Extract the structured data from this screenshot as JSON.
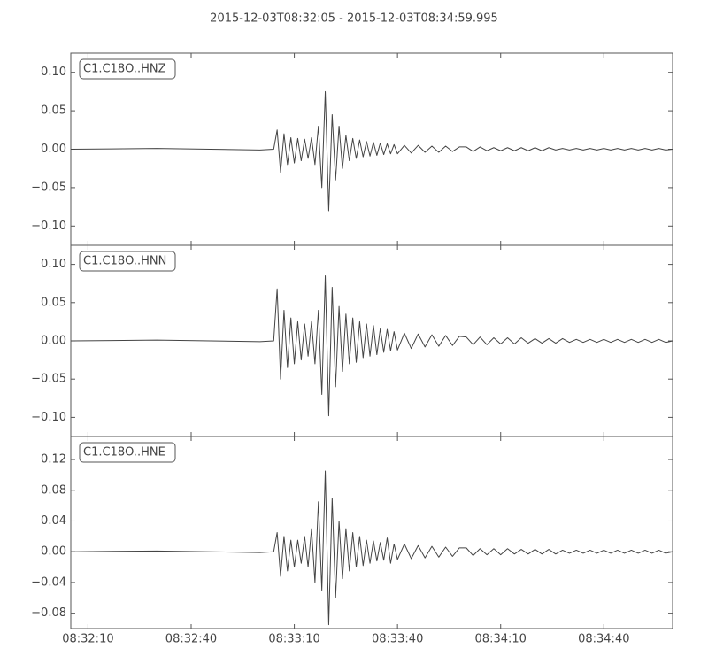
{
  "title": "2015-12-03T08:32:05  -  2015-12-03T08:34:59.995",
  "chart_data": [
    {
      "type": "line",
      "x": [
        "08:32:05",
        "08:32:30",
        "08:33:00",
        "08:33:04",
        "08:33:05",
        "08:33:06",
        "08:33:07",
        "08:33:08",
        "08:33:09",
        "08:33:10",
        "08:33:11",
        "08:33:12",
        "08:33:13",
        "08:33:14",
        "08:33:15",
        "08:33:16",
        "08:33:17",
        "08:33:18",
        "08:33:19",
        "08:33:20",
        "08:33:21",
        "08:33:22",
        "08:33:23",
        "08:33:24",
        "08:33:25",
        "08:33:26",
        "08:33:27",
        "08:33:28",
        "08:33:29",
        "08:33:30",
        "08:33:31",
        "08:33:32",
        "08:33:33",
        "08:33:34",
        "08:33:35",
        "08:33:36",
        "08:33:37",
        "08:33:38",
        "08:33:39",
        "08:33:40",
        "08:33:42",
        "08:33:44",
        "08:33:46",
        "08:33:48",
        "08:33:50",
        "08:33:52",
        "08:33:54",
        "08:33:56",
        "08:33:58",
        "08:34:00",
        "08:34:02",
        "08:34:04",
        "08:34:06",
        "08:34:08",
        "08:34:10",
        "08:34:12",
        "08:34:14",
        "08:34:16",
        "08:34:18",
        "08:34:20",
        "08:34:22",
        "08:34:24",
        "08:34:26",
        "08:34:28",
        "08:34:30",
        "08:34:32",
        "08:34:34",
        "08:34:36",
        "08:34:38",
        "08:34:40",
        "08:34:42",
        "08:34:44",
        "08:34:46",
        "08:34:48",
        "08:34:50",
        "08:34:52",
        "08:34:54",
        "08:34:56",
        "08:34:58",
        "08:34:59.995"
      ],
      "series": [
        {
          "name": "C1.C18O..HNZ",
          "color": "#444444",
          "values": [
            0,
            0.001,
            -0.001,
            0,
            0.025,
            -0.03,
            0.02,
            -0.02,
            0.015,
            -0.018,
            0.014,
            -0.015,
            0.013,
            -0.012,
            0.015,
            -0.02,
            0.03,
            -0.05,
            0.075,
            -0.08,
            0.045,
            -0.04,
            0.03,
            -0.025,
            0.018,
            -0.015,
            0.014,
            -0.012,
            0.012,
            -0.01,
            0.01,
            -0.009,
            0.009,
            -0.008,
            0.008,
            -0.007,
            0.007,
            -0.006,
            0.006,
            -0.006,
            0.005,
            -0.005,
            0.005,
            -0.004,
            0.004,
            -0.004,
            0.004,
            -0.003,
            0.003,
            0.003,
            -0.003,
            0.003,
            -0.002,
            0.002,
            -0.002,
            0.002,
            -0.002,
            0.002,
            -0.002,
            0.002,
            -0.002,
            0.002,
            -0.001,
            0.001,
            -0.001,
            0.001,
            -0.001,
            0.001,
            -0.001,
            0.001,
            -0.001,
            0.001,
            -0.001,
            0.001,
            -0.001,
            0.001,
            -0.001,
            0.001,
            -0.001,
            0
          ]
        }
      ],
      "xlim": [
        "08:32:05",
        "08:34:59.995"
      ],
      "ylim": [
        -0.125,
        0.125
      ],
      "yticks": [
        {
          "value": 0.1,
          "label": "0.10"
        },
        {
          "value": 0.05,
          "label": "0.05"
        },
        {
          "value": 0,
          "label": "0.00"
        },
        {
          "value": -0.05,
          "label": "−0.05"
        },
        {
          "value": -0.1,
          "label": "−0.10"
        }
      ]
    },
    {
      "type": "line",
      "x": [
        "08:32:05",
        "08:32:30",
        "08:33:00",
        "08:33:04",
        "08:33:05",
        "08:33:06",
        "08:33:07",
        "08:33:08",
        "08:33:09",
        "08:33:10",
        "08:33:11",
        "08:33:12",
        "08:33:13",
        "08:33:14",
        "08:33:15",
        "08:33:16",
        "08:33:17",
        "08:33:18",
        "08:33:19",
        "08:33:20",
        "08:33:21",
        "08:33:22",
        "08:33:23",
        "08:33:24",
        "08:33:25",
        "08:33:26",
        "08:33:27",
        "08:33:28",
        "08:33:29",
        "08:33:30",
        "08:33:31",
        "08:33:32",
        "08:33:33",
        "08:33:34",
        "08:33:35",
        "08:33:36",
        "08:33:37",
        "08:33:38",
        "08:33:39",
        "08:33:40",
        "08:33:42",
        "08:33:44",
        "08:33:46",
        "08:33:48",
        "08:33:50",
        "08:33:52",
        "08:33:54",
        "08:33:56",
        "08:33:58",
        "08:34:00",
        "08:34:02",
        "08:34:04",
        "08:34:06",
        "08:34:08",
        "08:34:10",
        "08:34:12",
        "08:34:14",
        "08:34:16",
        "08:34:18",
        "08:34:20",
        "08:34:22",
        "08:34:24",
        "08:34:26",
        "08:34:28",
        "08:34:30",
        "08:34:32",
        "08:34:34",
        "08:34:36",
        "08:34:38",
        "08:34:40",
        "08:34:42",
        "08:34:44",
        "08:34:46",
        "08:34:48",
        "08:34:50",
        "08:34:52",
        "08:34:54",
        "08:34:56",
        "08:34:58",
        "08:34:59.995"
      ],
      "series": [
        {
          "name": "C1.C18O..HNN",
          "color": "#444444",
          "values": [
            0,
            0.001,
            -0.001,
            0,
            0.068,
            -0.05,
            0.04,
            -0.035,
            0.03,
            -0.03,
            0.025,
            -0.025,
            0.022,
            -0.02,
            0.025,
            -0.03,
            0.04,
            -0.07,
            0.085,
            -0.098,
            0.07,
            -0.06,
            0.045,
            -0.04,
            0.035,
            -0.03,
            0.03,
            -0.028,
            0.025,
            -0.022,
            0.022,
            -0.02,
            0.02,
            -0.018,
            0.016,
            -0.015,
            0.015,
            -0.013,
            0.012,
            -0.012,
            0.01,
            -0.01,
            0.009,
            -0.008,
            0.008,
            -0.007,
            0.007,
            -0.006,
            0.006,
            0.005,
            -0.005,
            0.005,
            -0.005,
            0.004,
            -0.004,
            0.004,
            -0.004,
            0.004,
            -0.003,
            0.003,
            -0.003,
            0.003,
            -0.003,
            0.003,
            -0.002,
            0.002,
            -0.002,
            0.002,
            -0.002,
            0.002,
            -0.002,
            0.002,
            -0.002,
            0.002,
            -0.002,
            0.002,
            -0.002,
            0.002,
            -0.002,
            0
          ]
        }
      ],
      "xlim": [
        "08:32:05",
        "08:34:59.995"
      ],
      "ylim": [
        -0.125,
        0.125
      ],
      "yticks": [
        {
          "value": 0.1,
          "label": "0.10"
        },
        {
          "value": 0.05,
          "label": "0.05"
        },
        {
          "value": 0,
          "label": "0.00"
        },
        {
          "value": -0.05,
          "label": "−0.05"
        },
        {
          "value": -0.1,
          "label": "−0.10"
        }
      ]
    },
    {
      "type": "line",
      "x": [
        "08:32:05",
        "08:32:30",
        "08:33:00",
        "08:33:04",
        "08:33:05",
        "08:33:06",
        "08:33:07",
        "08:33:08",
        "08:33:09",
        "08:33:10",
        "08:33:11",
        "08:33:12",
        "08:33:13",
        "08:33:14",
        "08:33:15",
        "08:33:16",
        "08:33:17",
        "08:33:18",
        "08:33:19",
        "08:33:20",
        "08:33:21",
        "08:33:22",
        "08:33:23",
        "08:33:24",
        "08:33:25",
        "08:33:26",
        "08:33:27",
        "08:33:28",
        "08:33:29",
        "08:33:30",
        "08:33:31",
        "08:33:32",
        "08:33:33",
        "08:33:34",
        "08:33:35",
        "08:33:36",
        "08:33:37",
        "08:33:38",
        "08:33:39",
        "08:33:40",
        "08:33:42",
        "08:33:44",
        "08:33:46",
        "08:33:48",
        "08:33:50",
        "08:33:52",
        "08:33:54",
        "08:33:56",
        "08:33:58",
        "08:34:00",
        "08:34:02",
        "08:34:04",
        "08:34:06",
        "08:34:08",
        "08:34:10",
        "08:34:12",
        "08:34:14",
        "08:34:16",
        "08:34:18",
        "08:34:20",
        "08:34:22",
        "08:34:24",
        "08:34:26",
        "08:34:28",
        "08:34:30",
        "08:34:32",
        "08:34:34",
        "08:34:36",
        "08:34:38",
        "08:34:40",
        "08:34:42",
        "08:34:44",
        "08:34:46",
        "08:34:48",
        "08:34:50",
        "08:34:52",
        "08:34:54",
        "08:34:56",
        "08:34:58",
        "08:34:59.995"
      ],
      "series": [
        {
          "name": "C1.C18O..HNE",
          "color": "#444444",
          "values": [
            0,
            0.001,
            -0.001,
            0,
            0.025,
            -0.032,
            0.02,
            -0.025,
            0.015,
            -0.02,
            0.015,
            -0.015,
            0.02,
            -0.02,
            0.03,
            -0.04,
            0.065,
            -0.05,
            0.105,
            -0.095,
            0.07,
            -0.06,
            0.04,
            -0.035,
            0.03,
            -0.025,
            0.025,
            -0.02,
            0.02,
            -0.018,
            0.015,
            -0.015,
            0.014,
            -0.012,
            0.012,
            -0.011,
            0.018,
            -0.015,
            0.01,
            -0.01,
            0.01,
            -0.009,
            0.008,
            -0.008,
            0.007,
            -0.007,
            0.006,
            -0.006,
            0.005,
            0.005,
            -0.005,
            0.004,
            -0.004,
            0.004,
            -0.004,
            0.004,
            -0.003,
            0.003,
            -0.003,
            0.003,
            -0.003,
            0.003,
            -0.003,
            0.002,
            -0.002,
            0.002,
            -0.002,
            0.002,
            -0.002,
            0.002,
            -0.002,
            0.002,
            -0.002,
            0.002,
            -0.002,
            0.002,
            -0.002,
            0.002,
            -0.002,
            0
          ]
        }
      ],
      "xlim": [
        "08:32:05",
        "08:34:59.995"
      ],
      "xticks": [
        "08:32:10",
        "08:32:40",
        "08:33:10",
        "08:33:40",
        "08:34:10",
        "08:34:40"
      ],
      "ylim": [
        -0.1,
        0.15
      ],
      "yticks": [
        {
          "value": 0.12,
          "label": "0.12"
        },
        {
          "value": 0.08,
          "label": "0.08"
        },
        {
          "value": 0.04,
          "label": "0.04"
        },
        {
          "value": 0,
          "label": "0.00"
        },
        {
          "value": -0.04,
          "label": "−0.04"
        },
        {
          "value": -0.08,
          "label": "−0.08"
        }
      ]
    }
  ]
}
